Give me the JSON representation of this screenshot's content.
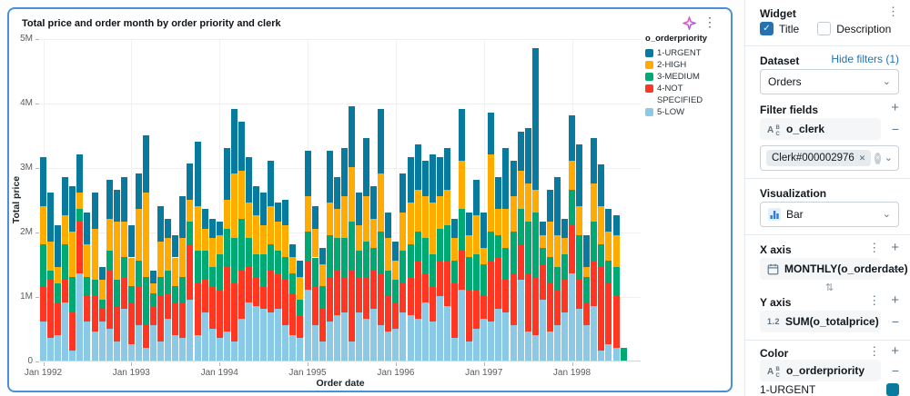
{
  "icons": {
    "kebab": "⋮",
    "plus": "+",
    "minus": "−",
    "chevron": "⌄",
    "close": "✕",
    "check": "✓",
    "swap": "⇅",
    "numeric_type": "1.2"
  },
  "colors": {
    "accent_blue": "#2272b4",
    "selection_border": "#4a90d9",
    "urgent_swatch": "#077a9d"
  },
  "chart_data": {
    "type": "bar",
    "stacked": true,
    "title": "Total price and order month by order priority and clerk",
    "xlabel": "Order date",
    "ylabel": "Total price",
    "legend_title": "o_orderpriority",
    "legend_position": "right",
    "grid": true,
    "values_unit": "millions",
    "ylim_millions": [
      0,
      5
    ],
    "y_ticks": {
      "labels": [
        "0",
        "1M",
        "2M",
        "3M",
        "4M",
        "5M"
      ],
      "values": [
        0,
        1,
        2,
        3,
        4,
        5
      ]
    },
    "x_ticks": {
      "labels": [
        "Jan 1992",
        "Jan 1993",
        "Jan 1994",
        "Jan 1995",
        "Jan 1996",
        "Jan 1997",
        "Jan 1998"
      ],
      "month_indices": [
        0,
        12,
        24,
        36,
        48,
        60,
        72
      ]
    },
    "x_range_months": {
      "start": "Jan 1992",
      "end": "Aug 1998",
      "count": 80
    },
    "series": [
      {
        "name": "1-URGENT",
        "color": "#077a9d",
        "values": [
          0.75,
          0.75,
          0.65,
          0.6,
          0.7,
          0.6,
          0.5,
          0.55,
          0.2,
          0.6,
          0.5,
          0.7,
          0.5,
          0.55,
          0.9,
          0.2,
          0.55,
          0.3,
          0.35,
          0.65,
          0.55,
          1.0,
          0.3,
          0.3,
          0.2,
          0.8,
          1.0,
          0.75,
          0.7,
          0.45,
          0.5,
          0.7,
          0.3,
          0.4,
          0.2,
          0.25,
          0.7,
          0.35,
          0.25,
          0.8,
          0.5,
          0.75,
          0.95,
          0.5,
          0.9,
          0.5,
          1.0,
          0.4,
          0.3,
          0.6,
          0.7,
          0.7,
          0.55,
          0.75,
          0.6,
          0.65,
          0.3,
          0.8,
          0.35,
          0.55,
          0.55,
          0.65,
          0.5,
          0.95,
          0.55,
          0.6,
          0.85,
          2.2,
          0.2,
          0.5,
          0.9,
          0.3,
          0.7,
          0.95,
          0.5,
          0.7,
          0.65,
          0.35,
          0.3,
          0
        ]
      },
      {
        "name": "2-HIGH",
        "color": "#ffab00",
        "values": [
          0.6,
          0.45,
          0.25,
          0.45,
          0.7,
          0.25,
          0.5,
          0.8,
          0.3,
          0.5,
          0.9,
          0.55,
          0.45,
          0.8,
          1.3,
          0.15,
          0.55,
          0.5,
          0.45,
          0.6,
          0.35,
          0.7,
          0.35,
          0.45,
          0.3,
          0.45,
          1.0,
          0.75,
          0.55,
          0.6,
          0.45,
          0.6,
          0.45,
          0.5,
          0.25,
          0.35,
          0.55,
          0.45,
          0.35,
          0.5,
          0.45,
          0.65,
          0.85,
          0.4,
          0.7,
          0.45,
          0.9,
          0.5,
          0.3,
          0.6,
          0.65,
          0.65,
          0.65,
          0.8,
          0.5,
          0.55,
          0.35,
          0.75,
          0.35,
          0.6,
          0.25,
          1.2,
          0.4,
          0.6,
          0.55,
          0.6,
          0.6,
          0.35,
          0.2,
          0.55,
          0.5,
          0.25,
          0.45,
          0.45,
          0.15,
          0.6,
          0.6,
          0.45,
          0.5,
          0
        ]
      },
      {
        "name": "3-MEDIUM",
        "color": "#00a972",
        "values": [
          0.65,
          0.15,
          0.3,
          0.55,
          0.55,
          0.2,
          0.3,
          0.25,
          0.15,
          0.3,
          0.4,
          0.3,
          0.25,
          0.4,
          0.75,
          0.2,
          0.3,
          0.35,
          0.25,
          0.4,
          0.35,
          0.5,
          0.45,
          0.3,
          0.55,
          0.6,
          0.7,
          0.8,
          0.45,
          0.35,
          0.5,
          0.4,
          0.35,
          0.35,
          0.3,
          0.25,
          0.45,
          0.45,
          0.35,
          0.65,
          0.5,
          0.6,
          0.75,
          0.4,
          0.55,
          0.35,
          0.65,
          0.4,
          0.35,
          0.5,
          0.5,
          0.45,
          0.55,
          0.5,
          0.5,
          0.55,
          0.35,
          0.65,
          0.5,
          0.55,
          0.5,
          0.45,
          0.35,
          0.5,
          0.65,
          0.55,
          0.8,
          1.0,
          0.25,
          0.4,
          0.35,
          0.4,
          0.55,
          0.7,
          0.4,
          0.6,
          0.35,
          0.35,
          0.45,
          0.2
        ]
      },
      {
        "name": "4-NOT SPECIFIED",
        "color": "#ff3621",
        "values": [
          0.55,
          0.9,
          0.5,
          0.35,
          0.6,
          0.8,
          0.4,
          0.55,
          0.2,
          0.9,
          0.55,
          0.5,
          0.65,
          0.6,
          0.35,
          0.3,
          0.7,
          0.4,
          0.5,
          0.55,
          0.85,
          0.8,
          0.5,
          0.65,
          0.75,
          1.0,
          0.9,
          0.75,
          0.55,
          0.45,
          0.35,
          0.65,
          0.55,
          0.7,
          0.65,
          0.35,
          0.45,
          0.6,
          0.5,
          0.7,
          0.7,
          0.55,
          1.1,
          0.55,
          0.65,
          0.6,
          0.8,
          0.55,
          0.4,
          0.45,
          0.6,
          0.9,
          0.45,
          0.55,
          0.55,
          0.7,
          0.85,
          0.6,
          0.8,
          0.6,
          0.35,
          0.95,
          0.8,
          0.5,
          0.8,
          0.55,
          0.9,
          0.9,
          0.55,
          0.75,
          0.55,
          0.5,
          0.75,
          0.45,
          0.35,
          0.7,
          1.3,
          0.95,
          0.8,
          0
        ]
      },
      {
        "name": "5-LOW",
        "color": "#8bcae7",
        "values": [
          0.6,
          0.35,
          0.4,
          0.9,
          0.15,
          1.35,
          0.6,
          0.45,
          0.6,
          0.5,
          0.3,
          0.8,
          0.25,
          0.55,
          0.2,
          0.55,
          0.3,
          0.65,
          0.4,
          0.35,
          0.95,
          0.4,
          0.75,
          0.5,
          0.35,
          0.45,
          0.3,
          0.65,
          0.9,
          0.85,
          0.8,
          0.75,
          0.8,
          0.55,
          0.4,
          0.35,
          1.1,
          0.55,
          0.3,
          0.6,
          0.7,
          0.75,
          0.3,
          0.75,
          0.65,
          0.8,
          0.55,
          0.45,
          0.5,
          0.75,
          0.7,
          0.65,
          0.9,
          0.6,
          1.0,
          0.85,
          0.35,
          1.1,
          0.3,
          0.5,
          0.65,
          0.6,
          0.8,
          0.75,
          0.55,
          1.25,
          0.45,
          0.4,
          0.95,
          0.45,
          0.55,
          0.75,
          1.35,
          0.8,
          0.55,
          0.85,
          0.15,
          0.25,
          0.2,
          0
        ]
      }
    ]
  },
  "panel": {
    "widget": {
      "heading": "Widget",
      "title_checkbox": {
        "label": "Title",
        "checked": true
      },
      "description_checkbox": {
        "label": "Description",
        "checked": false
      }
    },
    "dataset": {
      "heading": "Dataset",
      "hide_filters_link": "Hide filters (1)",
      "selected": "Orders"
    },
    "filter_fields": {
      "heading": "Filter fields",
      "field": "o_clerk",
      "value_chip": "Clerk#000002976"
    },
    "visualization": {
      "heading": "Visualization",
      "selected": "Bar"
    },
    "x_axis": {
      "heading": "X axis",
      "field": "MONTHLY(o_orderdate)"
    },
    "y_axis": {
      "heading": "Y axis",
      "field": "SUM(o_totalprice)"
    },
    "color": {
      "heading": "Color",
      "field": "o_orderpriority",
      "first_item": {
        "label": "1-URGENT",
        "color": "#077a9d"
      }
    }
  }
}
